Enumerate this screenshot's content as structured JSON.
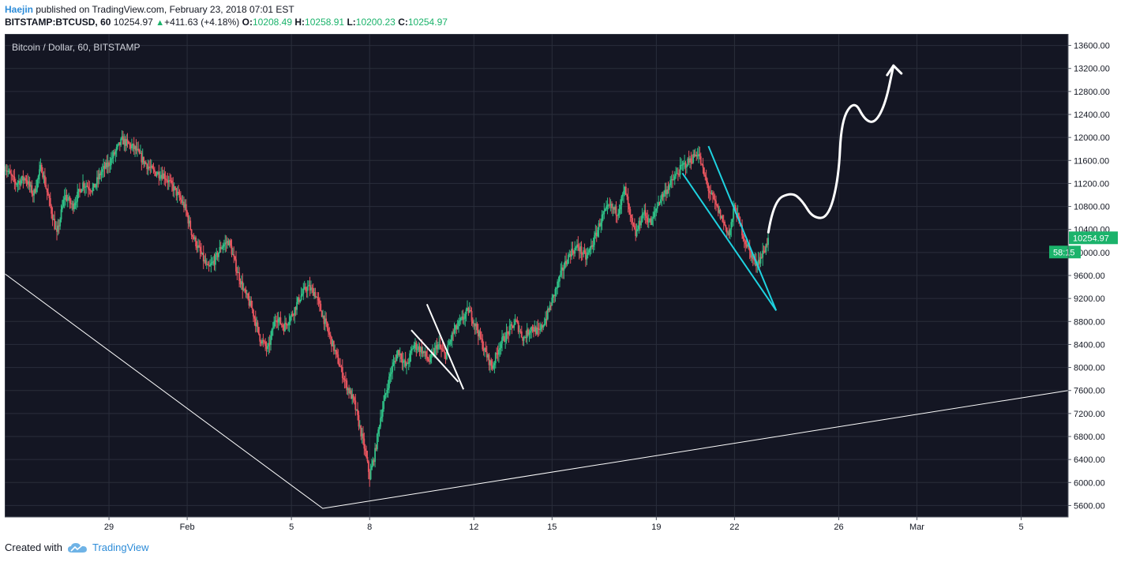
{
  "header": {
    "author": "Haejin",
    "published_text": "published on TradingView.com, February 23, 2018 07:01 EST",
    "symbol": "BITSTAMP:BTCUSD, 60",
    "last": "10254.97",
    "change": "+411.63 (+4.18%)",
    "o_label": "O:",
    "o_value": "10208.49",
    "h_label": "H:",
    "h_value": "10258.91",
    "l_label": "L:",
    "l_value": "10200.23",
    "c_label": "C:",
    "c_value": "10254.97"
  },
  "footer": {
    "created_with": "Created with",
    "brand": "TradingView"
  },
  "colors": {
    "background": "#141623",
    "grid": "#2a2e3b",
    "up_candle": "#2fbf86",
    "down_candle": "#e8555f",
    "trendline": "#ffffff",
    "wedge": "#1ed2e0",
    "price_tag": "#1bb36b"
  },
  "chart_data": {
    "type": "candlestick",
    "title": "Bitcoin / Dollar, 60, BITSTAMP",
    "ylim": [
      5400,
      13800
    ],
    "y_ticks": [
      5600,
      6000,
      6400,
      6800,
      7200,
      7600,
      8000,
      8400,
      8800,
      9200,
      9600,
      10000,
      10400,
      10800,
      11200,
      11600,
      12000,
      12400,
      12800,
      13200,
      13600
    ],
    "y_tick_labels": [
      "5600.00",
      "6000.00",
      "6400.00",
      "6800.00",
      "7200.00",
      "7600.00",
      "8000.00",
      "8400.00",
      "8800.00",
      "9200.00",
      "9600.00",
      "10000.00",
      "10400.00",
      "10800.00",
      "11200.00",
      "11600.00",
      "12000.00",
      "12400.00",
      "12800.00",
      "13200.00",
      "13600.00"
    ],
    "xlim_days": [
      -4.0,
      36.8
    ],
    "x_ticks": [
      {
        "day": 0,
        "label": "29"
      },
      {
        "day": 3,
        "label": "Feb"
      },
      {
        "day": 7,
        "label": "5"
      },
      {
        "day": 10,
        "label": "8"
      },
      {
        "day": 14,
        "label": "12"
      },
      {
        "day": 17,
        "label": "15"
      },
      {
        "day": 21,
        "label": "19"
      },
      {
        "day": 24,
        "label": "22"
      },
      {
        "day": 28,
        "label": "26"
      },
      {
        "day": 31,
        "label": "Mar"
      },
      {
        "day": 35,
        "label": "5"
      }
    ],
    "last_price_label": "10254.97",
    "countdown_label": "58:15",
    "last_price": 10254.97,
    "path_keypoints": [
      [
        -4.0,
        11500
      ],
      [
        -3.6,
        11200
      ],
      [
        -3.2,
        11300
      ],
      [
        -2.9,
        11000
      ],
      [
        -2.6,
        11500
      ],
      [
        -2.3,
        10900
      ],
      [
        -2.0,
        10300
      ],
      [
        -1.7,
        11000
      ],
      [
        -1.4,
        10800
      ],
      [
        -1.0,
        11200
      ],
      [
        -0.6,
        11100
      ],
      [
        -0.3,
        11400
      ],
      [
        0.0,
        11550
      ],
      [
        0.5,
        11950
      ],
      [
        1.0,
        11800
      ],
      [
        1.3,
        11600
      ],
      [
        1.7,
        11400
      ],
      [
        2.1,
        11350
      ],
      [
        2.5,
        11100
      ],
      [
        2.9,
        10800
      ],
      [
        3.2,
        10300
      ],
      [
        3.5,
        10000
      ],
      [
        3.8,
        9700
      ],
      [
        4.1,
        9900
      ],
      [
        4.3,
        10100
      ],
      [
        4.6,
        10200
      ],
      [
        4.9,
        9700
      ],
      [
        5.2,
        9300
      ],
      [
        5.5,
        9000
      ],
      [
        5.8,
        8500
      ],
      [
        6.1,
        8300
      ],
      [
        6.4,
        8900
      ],
      [
        6.7,
        8700
      ],
      [
        7.0,
        8900
      ],
      [
        7.3,
        9200
      ],
      [
        7.6,
        9400
      ],
      [
        7.9,
        9300
      ],
      [
        8.2,
        8900
      ],
      [
        8.5,
        8500
      ],
      [
        8.8,
        8100
      ],
      [
        9.1,
        7700
      ],
      [
        9.4,
        7400
      ],
      [
        9.6,
        7000
      ],
      [
        9.8,
        6600
      ],
      [
        10.0,
        6100
      ],
      [
        10.2,
        6500
      ],
      [
        10.4,
        7100
      ],
      [
        10.6,
        7500
      ],
      [
        10.8,
        7900
      ],
      [
        11.1,
        8300
      ],
      [
        11.4,
        8000
      ],
      [
        11.7,
        8400
      ],
      [
        12.0,
        8300
      ],
      [
        12.3,
        8100
      ],
      [
        12.6,
        8400
      ],
      [
        12.9,
        8200
      ],
      [
        13.2,
        8600
      ],
      [
        13.5,
        8800
      ],
      [
        13.8,
        9000
      ],
      [
        14.1,
        8700
      ],
      [
        14.4,
        8300
      ],
      [
        14.7,
        8000
      ],
      [
        15.0,
        8400
      ],
      [
        15.3,
        8600
      ],
      [
        15.6,
        8800
      ],
      [
        15.9,
        8500
      ],
      [
        16.2,
        8700
      ],
      [
        16.5,
        8600
      ],
      [
        16.8,
        8900
      ],
      [
        17.1,
        9300
      ],
      [
        17.4,
        9700
      ],
      [
        17.7,
        10000
      ],
      [
        18.0,
        10100
      ],
      [
        18.3,
        9900
      ],
      [
        18.6,
        10200
      ],
      [
        18.9,
        10600
      ],
      [
        19.2,
        10800
      ],
      [
        19.5,
        10700
      ],
      [
        19.8,
        11100
      ],
      [
        20.0,
        10600
      ],
      [
        20.2,
        10300
      ],
      [
        20.5,
        10700
      ],
      [
        20.8,
        10500
      ],
      [
        21.1,
        10900
      ],
      [
        21.4,
        11100
      ],
      [
        21.7,
        11300
      ],
      [
        22.0,
        11500
      ],
      [
        22.3,
        11600
      ],
      [
        22.6,
        11750
      ],
      [
        22.8,
        11400
      ],
      [
        23.0,
        11100
      ],
      [
        23.2,
        10900
      ],
      [
        23.4,
        10700
      ],
      [
        23.6,
        10500
      ],
      [
        23.8,
        10300
      ],
      [
        24.0,
        10800
      ],
      [
        24.2,
        10500
      ],
      [
        24.4,
        10200
      ],
      [
        24.6,
        10000
      ],
      [
        24.8,
        9800
      ],
      [
        25.0,
        9900
      ],
      [
        25.2,
        10100
      ],
      [
        25.3,
        10255
      ]
    ],
    "annotations": {
      "lower_trendline": [
        [
          -4.0,
          9630
        ],
        [
          8.2,
          5550
        ],
        [
          36.8,
          7600
        ]
      ],
      "small_wedge_upper": [
        [
          12.2,
          9100
        ],
        [
          13.6,
          7620
        ]
      ],
      "small_wedge_lower": [
        [
          11.6,
          8650
        ],
        [
          13.4,
          7750
        ]
      ],
      "large_wedge_upper": [
        [
          23.0,
          11850
        ],
        [
          25.6,
          8990
        ]
      ],
      "large_wedge_lower": [
        [
          22.0,
          11380
        ],
        [
          25.6,
          8990
        ]
      ],
      "forecast_path": [
        [
          25.3,
          10350
        ],
        [
          25.5,
          10900
        ],
        [
          26.2,
          11050
        ],
        [
          26.6,
          10900
        ],
        [
          27.0,
          10600
        ],
        [
          27.6,
          10600
        ],
        [
          28.0,
          11300
        ],
        [
          28.1,
          12300
        ],
        [
          28.6,
          12650
        ],
        [
          29.0,
          12300
        ],
        [
          29.4,
          12250
        ],
        [
          29.8,
          12600
        ],
        [
          30.1,
          13250
        ]
      ]
    }
  }
}
